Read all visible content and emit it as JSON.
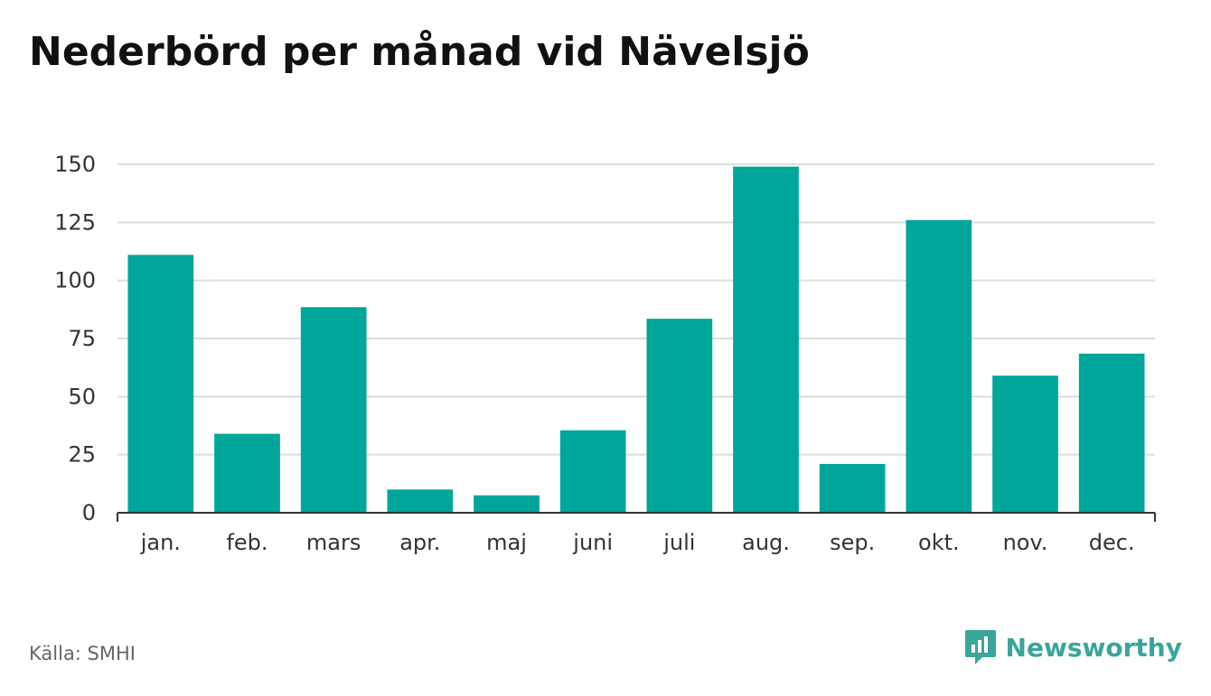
{
  "title": "Nederbörd per månad vid Nävelsjö",
  "source": "Källa: SMHI",
  "brand": {
    "name": "Newsworthy",
    "icon": "newsworthy-logo-icon"
  },
  "colors": {
    "bar": "#00a699",
    "grid": "#dddddd",
    "axis": "#333333",
    "brand": "#3aa59b"
  },
  "chart_data": {
    "type": "bar",
    "title": "Nederbörd per månad vid Nävelsjö",
    "xlabel": "",
    "ylabel": "",
    "categories": [
      "jan.",
      "feb.",
      "mars",
      "apr.",
      "maj",
      "juni",
      "juli",
      "aug.",
      "sep.",
      "okt.",
      "nov.",
      "dec."
    ],
    "values": [
      111,
      34,
      88.5,
      10,
      7.5,
      35.5,
      83.5,
      149,
      21,
      126,
      59,
      68.5
    ],
    "yticks": [
      0,
      25,
      50,
      75,
      100,
      125,
      150
    ],
    "ylim": [
      0,
      150
    ],
    "grid": true,
    "legend": "none"
  }
}
